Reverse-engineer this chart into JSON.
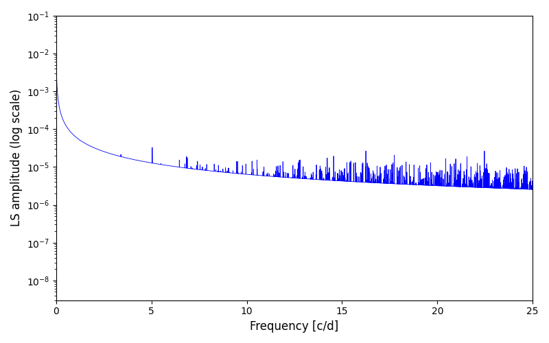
{
  "title": "",
  "xlabel": "Frequency [c/d]",
  "ylabel": "LS amplitude (log scale)",
  "xlim": [
    0,
    25
  ],
  "ylim": [
    3e-09,
    0.1
  ],
  "line_color": "#0000ff",
  "line_width": 0.6,
  "background_color": "#ffffff",
  "figsize": [
    8.0,
    5.0
  ],
  "dpi": 100,
  "yscale": "log",
  "freq_max": 25.0,
  "n_points": 10000,
  "seed": 77
}
